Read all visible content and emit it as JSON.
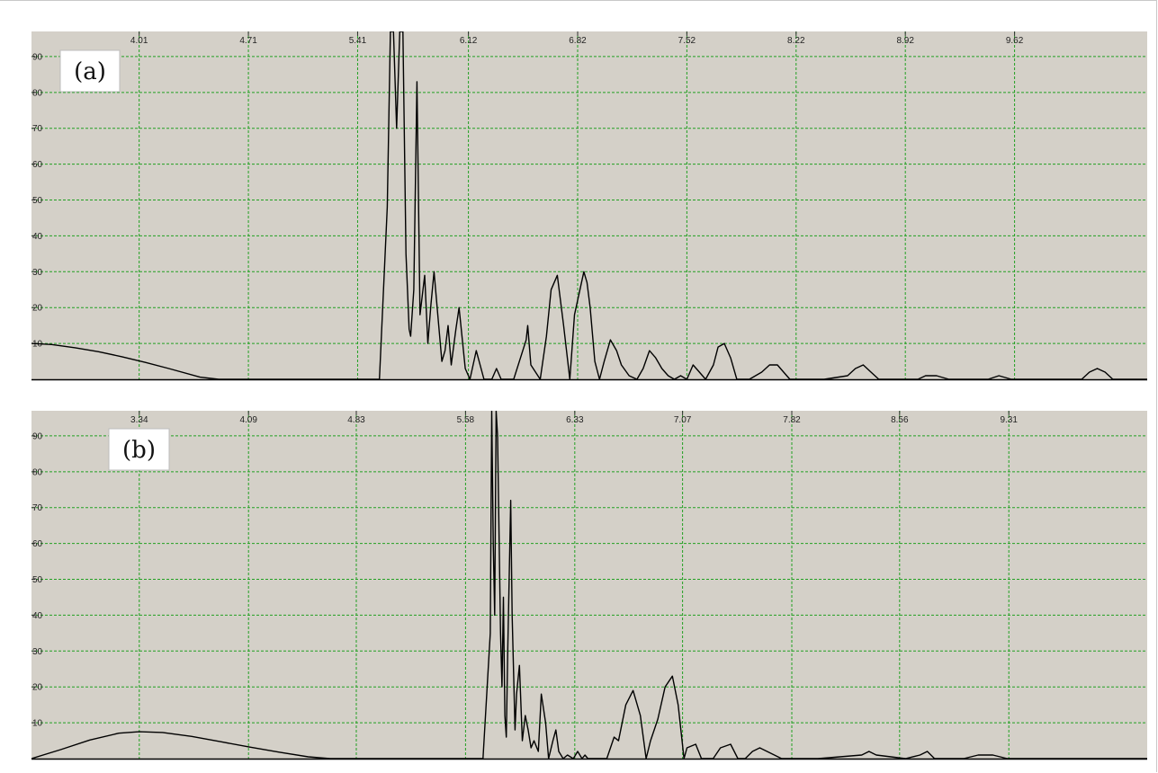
{
  "chart_data": [
    {
      "type": "line",
      "panel_label": "(a)",
      "x_ticks": [
        "4.01",
        "4.71",
        "5.41",
        "6.12",
        "6.82",
        "7.52",
        "8.22",
        "8.92",
        "9.62"
      ],
      "y_ticks": [
        "10",
        "20",
        "30",
        "40",
        "50",
        "60",
        "70",
        "80",
        "90"
      ],
      "xlim": [
        3.32,
        10.47
      ],
      "ylim": [
        0,
        97
      ],
      "grid": true,
      "colors": {
        "background": "#d4d0c8",
        "grid": "#22a022",
        "line": "#000000"
      },
      "x": [
        3.32,
        3.45,
        3.6,
        3.75,
        3.9,
        4.05,
        4.2,
        4.4,
        4.52,
        5.55,
        5.6,
        5.62,
        5.64,
        5.66,
        5.68,
        5.7,
        5.72,
        5.74,
        5.75,
        5.77,
        5.79,
        5.81,
        5.84,
        5.86,
        5.88,
        5.9,
        5.93,
        5.95,
        5.97,
        5.99,
        6.01,
        6.04,
        6.06,
        6.1,
        6.13,
        6.17,
        6.22,
        6.27,
        6.3,
        6.33,
        6.36,
        6.41,
        6.49,
        6.5,
        6.52,
        6.58,
        6.62,
        6.65,
        6.69,
        6.73,
        6.77,
        6.8,
        6.83,
        6.86,
        6.88,
        6.9,
        6.93,
        6.96,
        6.99,
        7.03,
        7.07,
        7.1,
        7.15,
        7.2,
        7.24,
        7.28,
        7.32,
        7.36,
        7.4,
        7.44,
        7.48,
        7.52,
        7.56,
        7.6,
        7.64,
        7.69,
        7.72,
        7.76,
        7.8,
        7.84,
        7.87,
        7.92,
        8.0,
        8.05,
        8.1,
        8.14,
        8.18,
        8.22,
        8.27,
        8.4,
        8.55,
        8.6,
        8.65,
        8.7,
        8.75,
        8.8,
        8.85,
        9.0,
        9.05,
        9.12,
        9.2,
        9.3,
        9.45,
        9.52,
        9.6,
        9.68,
        9.75,
        9.9,
        10.05,
        10.1,
        10.15,
        10.2,
        10.25,
        10.3,
        10.47
      ],
      "y": [
        10,
        9.7,
        8.8,
        7.7,
        6.3,
        4.7,
        3.0,
        0.6,
        0,
        0,
        48,
        97,
        97,
        70,
        97,
        97,
        35,
        14,
        12,
        25,
        83,
        18,
        29,
        10,
        21,
        30,
        15,
        5,
        8,
        15,
        4,
        14,
        20,
        3,
        0,
        8,
        0,
        0,
        3,
        0,
        0,
        0,
        11,
        15,
        4,
        0,
        12,
        25,
        29,
        15,
        0,
        18,
        24,
        30,
        27,
        20,
        5,
        0,
        5,
        11,
        8,
        4,
        1,
        0,
        3,
        8,
        6,
        3,
        1,
        0,
        1,
        0,
        4,
        2,
        0,
        4,
        9,
        10,
        6,
        0,
        0,
        0,
        2,
        4,
        4,
        2,
        0,
        0,
        0,
        0,
        1,
        3,
        4,
        2,
        0,
        0,
        0,
        0,
        1,
        1,
        0,
        0,
        0,
        1,
        0,
        0,
        0,
        0,
        0,
        2,
        3,
        2,
        0,
        0,
        0
      ]
    },
    {
      "type": "line",
      "panel_label": "(b)",
      "x_ticks": [
        "3.34",
        "4.09",
        "4.83",
        "5.58",
        "6.33",
        "7.07",
        "7.82",
        "8.56",
        "9.31"
      ],
      "y_ticks": [
        "10",
        "20",
        "30",
        "40",
        "50",
        "60",
        "70",
        "80",
        "90"
      ],
      "xlim": [
        2.6,
        10.26
      ],
      "ylim": [
        0,
        97
      ],
      "grid": true,
      "colors": {
        "background": "#d4d0c8",
        "grid": "#22a022",
        "line": "#000000"
      },
      "x": [
        2.6,
        2.8,
        3.0,
        3.2,
        3.34,
        3.5,
        3.7,
        3.9,
        4.1,
        4.3,
        4.5,
        4.65,
        4.8,
        5.7,
        5.75,
        5.76,
        5.77,
        5.78,
        5.79,
        5.8,
        5.82,
        5.83,
        5.84,
        5.85,
        5.86,
        5.87,
        5.89,
        5.9,
        5.92,
        5.93,
        5.95,
        5.97,
        5.99,
        6.01,
        6.03,
        6.05,
        6.08,
        6.1,
        6.13,
        6.15,
        6.18,
        6.2,
        6.22,
        6.25,
        6.28,
        6.32,
        6.35,
        6.38,
        6.4,
        6.42,
        6.45,
        6.55,
        6.6,
        6.63,
        6.68,
        6.73,
        6.78,
        6.82,
        6.85,
        6.9,
        6.95,
        7.0,
        7.04,
        7.08,
        7.1,
        7.16,
        7.2,
        7.28,
        7.33,
        7.4,
        7.45,
        7.5,
        7.55,
        7.6,
        7.65,
        7.75,
        7.8,
        7.85,
        7.9,
        8.0,
        8.3,
        8.35,
        8.4,
        8.6,
        8.7,
        8.75,
        8.8,
        9.0,
        9.1,
        9.2,
        9.3,
        9.4,
        9.5,
        9.8,
        9.9,
        10.0,
        10.1,
        10.26
      ],
      "y": [
        0,
        2.5,
        5.2,
        7.1,
        7.5,
        7.3,
        6.2,
        4.7,
        3.2,
        1.8,
        0.5,
        0,
        0,
        0,
        35,
        97,
        60,
        40,
        97,
        90,
        35,
        20,
        45,
        12,
        6,
        30,
        72,
        40,
        8,
        18,
        26,
        5,
        12,
        8,
        3,
        5,
        2,
        18,
        10,
        0,
        5,
        8,
        2,
        0,
        1,
        0,
        2,
        0,
        1,
        0,
        0,
        0,
        6,
        5,
        15,
        19,
        12,
        0,
        5,
        11,
        20,
        23,
        15,
        0,
        3,
        4,
        0,
        0,
        3,
        4,
        0,
        0,
        2,
        3,
        2,
        0,
        0,
        0,
        0,
        0,
        1,
        2,
        1,
        0,
        1,
        2,
        0,
        0,
        1,
        1,
        0,
        0,
        0,
        0,
        0,
        0,
        0,
        0
      ]
    }
  ]
}
